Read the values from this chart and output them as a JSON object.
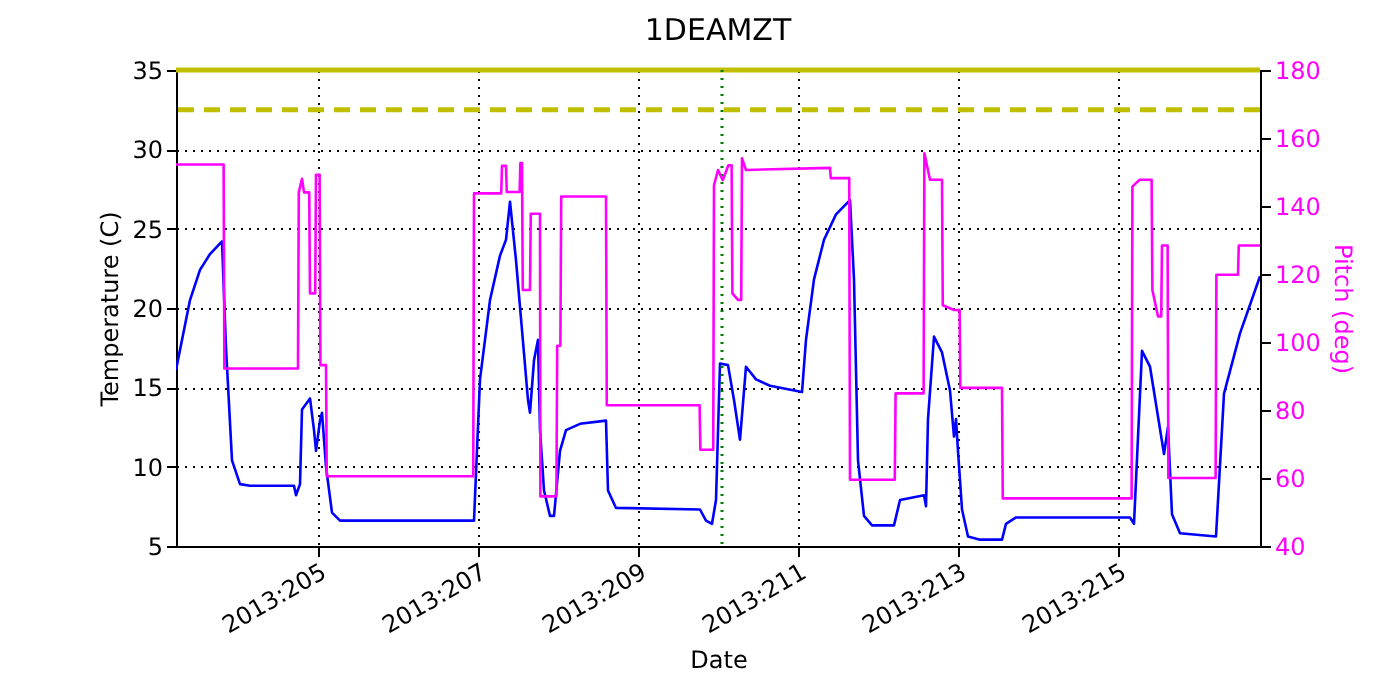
{
  "chart_data": {
    "type": "line",
    "title": "1DEAMZT",
    "xlabel": "Date",
    "ylabel": "Temperature (C)",
    "y2label": "Pitch (deg)",
    "xlim": [
      "2013-07-22T05:24",
      "2013-08-04T18:36"
    ],
    "xticks": [
      {
        "value": "2013-07-24",
        "label": "2013:205"
      },
      {
        "value": "2013-07-26",
        "label": "2013:207"
      },
      {
        "value": "2013-07-28",
        "label": "2013:209"
      },
      {
        "value": "2013-07-30",
        "label": "2013:211"
      },
      {
        "value": "2013-08-01",
        "label": "2013:213"
      },
      {
        "value": "2013-08-03",
        "label": "2013:215"
      }
    ],
    "ylim": [
      5,
      35
    ],
    "yticks": [
      5,
      10,
      15,
      20,
      25,
      30,
      35
    ],
    "y2lim": [
      40,
      180
    ],
    "y2ticks": [
      40,
      60,
      80,
      100,
      120,
      140,
      160,
      180
    ],
    "grid": true,
    "ref_lines": [
      {
        "axis": "y",
        "value": 32.5,
        "color": "#bfbf00",
        "line_style": "dashed"
      },
      {
        "axis": "y",
        "value": 35,
        "color": "#bfbf00",
        "line_style": "solid"
      },
      {
        "axis": "x",
        "value": "2013-07-29T01:12",
        "color": "#008000",
        "line_style": "dotted"
      }
    ],
    "series": [
      {
        "color": "#0000ff",
        "axis": "y",
        "x": [
          "2013-07-22T05:24",
          "2013-07-22T09:36",
          "2013-07-22T12:36",
          "2013-07-22T15:36",
          "2013-07-22T19:12",
          "2013-07-22T20:24",
          "2013-07-22T22:12",
          "2013-07-23T00:36",
          "2013-07-23T03:36",
          "2013-07-23T16:48",
          "2013-07-23T17:24",
          "2013-07-23T18:36",
          "2013-07-23T19:12",
          "2013-07-23T21:36",
          "2013-07-23T22:48",
          "2013-07-23T23:24",
          "2013-07-24T00:36",
          "2013-07-24T01:12",
          "2013-07-24T02:24",
          "2013-07-24T04:12",
          "2013-07-24T06:36",
          "2013-07-25T22:48",
          "2013-07-26T00:36",
          "2013-07-26T03:36",
          "2013-07-26T06:36",
          "2013-07-26T08:24",
          "2013-07-26T09:36",
          "2013-07-26T11:24",
          "2013-07-26T13:12",
          "2013-07-26T15:00",
          "2013-07-26T15:36",
          "2013-07-26T16:48",
          "2013-07-26T18:00",
          "2013-07-26T18:36",
          "2013-07-26T19:48",
          "2013-07-26T21:36",
          "2013-07-26T22:48",
          "2013-07-27T00:36",
          "2013-07-27T02:24",
          "2013-07-27T06:36",
          "2013-07-27T14:24",
          "2013-07-27T15:00",
          "2013-07-27T17:24",
          "2013-07-28T18:36",
          "2013-07-28T20:24",
          "2013-07-28T22:12",
          "2013-07-28T23:24",
          "2013-07-29T00:36",
          "2013-07-29T03:00",
          "2013-07-29T04:48",
          "2013-07-29T06:36",
          "2013-07-29T08:24",
          "2013-07-29T11:24",
          "2013-07-29T15:36",
          "2013-07-30T01:12",
          "2013-07-30T02:24",
          "2013-07-30T04:48",
          "2013-07-30T07:48",
          "2013-07-30T11:24",
          "2013-07-30T15:36",
          "2013-07-30T16:48",
          "2013-07-30T18:00",
          "2013-07-30T19:48",
          "2013-07-30T22:12",
          "2013-07-31T04:48",
          "2013-07-31T06:36",
          "2013-07-31T13:48",
          "2013-07-31T14:24",
          "2013-07-31T15:00",
          "2013-07-31T16:48",
          "2013-07-31T19:12",
          "2013-07-31T21:36",
          "2013-07-31T22:48",
          "2013-07-31T23:24",
          "2013-08-01T00:00",
          "2013-08-01T01:12",
          "2013-08-01T03:00",
          "2013-08-01T06:36",
          "2013-08-01T13:12",
          "2013-08-01T14:24",
          "2013-08-01T17:24",
          "2013-08-03T03:36",
          "2013-08-03T04:48",
          "2013-08-03T07:12",
          "2013-08-03T09:36",
          "2013-08-03T13:48",
          "2013-08-03T15:00",
          "2013-08-03T16:12",
          "2013-08-03T18:36",
          "2013-08-04T05:24",
          "2013-08-04T07:48",
          "2013-08-04T12:36",
          "2013-08-04T18:36"
        ],
        "values": [
          16.1,
          20.5,
          22.4,
          23.4,
          24.2,
          17.5,
          10.4,
          8.9,
          8.8,
          8.8,
          8.2,
          8.9,
          13.6,
          14.3,
          12.3,
          11.0,
          12.9,
          13.4,
          10.0,
          7.1,
          6.6,
          6.6,
          15.5,
          20.5,
          23.3,
          24.3,
          26.7,
          23.0,
          18.6,
          14.2,
          13.4,
          16.7,
          18.0,
          12.3,
          8.5,
          6.9,
          6.9,
          11.0,
          12.3,
          12.7,
          12.9,
          8.5,
          7.4,
          7.3,
          6.6,
          6.4,
          7.9,
          16.5,
          16.4,
          14.2,
          11.7,
          16.3,
          15.5,
          15.1,
          14.7,
          18.0,
          21.8,
          24.3,
          25.9,
          26.8,
          21.8,
          10.4,
          6.9,
          6.3,
          6.3,
          7.9,
          8.2,
          7.5,
          13.0,
          18.2,
          17.2,
          14.8,
          11.9,
          13.0,
          11.0,
          7.3,
          5.6,
          5.4,
          5.4,
          6.4,
          6.8,
          6.8,
          6.4,
          17.3,
          16.3,
          10.8,
          12.5,
          7.0,
          5.8,
          5.6,
          14.6,
          18.4,
          22.0
        ]
      },
      {
        "color": "#ff00ff",
        "axis": "y2",
        "x": [
          "2013-07-22T05:24",
          "2013-07-22T19:41",
          "2013-07-22T19:55",
          "2013-07-23T18:00",
          "2013-07-23T18:14",
          "2013-07-23T19:12",
          "2013-07-23T19:48",
          "2013-07-23T21:22",
          "2013-07-23T21:36",
          "2013-07-23T23:10",
          "2013-07-23T23:24",
          "2013-07-24T00:29",
          "2013-07-24T00:43",
          "2013-07-24T02:24",
          "2013-07-24T02:38",
          "2013-07-25T22:34",
          "2013-07-25T22:48",
          "2013-07-26T06:58",
          "2013-07-26T07:12",
          "2013-07-26T08:24",
          "2013-07-26T08:38",
          "2013-07-26T12:29",
          "2013-07-26T12:43",
          "2013-07-26T13:12",
          "2013-07-26T13:26",
          "2013-07-26T15:36",
          "2013-07-26T15:50",
          "2013-07-26T18:36",
          "2013-07-26T18:43",
          "2013-07-26T23:31",
          "2013-07-26T23:46",
          "2013-07-27T00:43",
          "2013-07-27T00:58",
          "2013-07-27T14:24",
          "2013-07-27T14:38",
          "2013-07-28T18:29",
          "2013-07-28T18:43",
          "2013-07-28T22:34",
          "2013-07-28T22:48",
          "2013-07-29T00:00",
          "2013-07-29T01:26",
          "2013-07-29T03:07",
          "2013-07-29T04:05",
          "2013-07-29T04:19",
          "2013-07-29T06:00",
          "2013-07-29T06:58",
          "2013-07-29T07:12",
          "2013-07-29T08:24",
          "2013-07-30T09:36",
          "2013-07-30T09:50",
          "2013-07-30T15:22",
          "2013-07-30T15:36",
          "2013-07-31T05:02",
          "2013-07-31T05:17",
          "2013-07-31T13:41",
          "2013-07-31T13:55",
          "2013-07-31T15:36",
          "2013-07-31T19:12",
          "2013-07-31T19:26",
          "2013-07-31T22:48",
          "2013-08-01T00:29",
          "2013-08-01T00:43",
          "2013-08-01T13:12",
          "2013-08-01T13:26",
          "2013-08-03T04:05",
          "2013-08-03T04:19",
          "2013-08-03T06:29",
          "2013-08-03T10:05",
          "2013-08-03T10:19",
          "2013-08-03T12:00",
          "2013-08-03T12:58",
          "2013-08-03T13:12",
          "2013-08-03T14:53",
          "2013-08-03T15:07",
          "2013-08-04T05:17",
          "2013-08-04T05:31",
          "2013-08-04T12:00",
          "2013-08-04T12:14",
          "2013-08-04T18:36"
        ],
        "values": [
          152.2,
          152.2,
          92.2,
          92.2,
          144,
          148,
          144,
          144,
          114.3,
          114.3,
          149.2,
          149.2,
          93.2,
          93.2,
          60.5,
          60.5,
          143.7,
          143.7,
          151.8,
          151.8,
          144.1,
          144.1,
          152.6,
          152.6,
          115.3,
          115.3,
          137.7,
          137.7,
          54.6,
          54.6,
          98.9,
          98.9,
          142.8,
          142.8,
          81.4,
          81.4,
          68.3,
          68.3,
          146.1,
          150.6,
          147.6,
          152,
          152,
          114.3,
          112.4,
          112.4,
          154,
          150.6,
          151.2,
          148.2,
          148.2,
          59.5,
          59.5,
          84.9,
          84.9,
          155.5,
          147.7,
          147.7,
          110.8,
          109.4,
          109.4,
          86.5,
          86.5,
          54.0,
          54.0,
          145.7,
          147.7,
          147.7,
          115.3,
          107.5,
          107.5,
          128.4,
          128.4,
          60.0,
          60.0,
          119.8,
          119.8,
          128.4,
          128.4
        ]
      }
    ]
  }
}
